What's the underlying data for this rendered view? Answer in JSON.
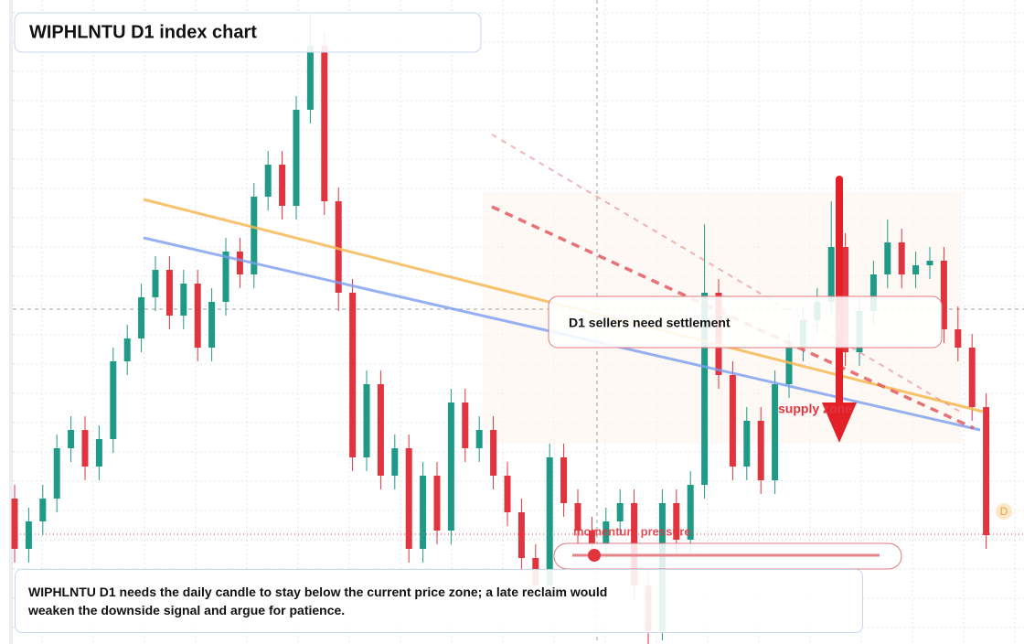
{
  "chart_data": {
    "type": "candlestick",
    "title": "WIPHLNTU D1 index chart",
    "ylim": [
      79.6,
      150
    ],
    "open": [
      95.5,
      90.0,
      93.0,
      95.5,
      101.0,
      103.0,
      99.0,
      102.0,
      110.5,
      113.0,
      117.5,
      120.5,
      115.5,
      119.0,
      112.0,
      117.0,
      122.5,
      120.0,
      128.5,
      132.0,
      127.5,
      138.0,
      145.0,
      128.0,
      118.0,
      100.0,
      108.0,
      98.0,
      101.0,
      90.0,
      98.0,
      92.0,
      106.0,
      101.0,
      103.0,
      98.0,
      94.0,
      89.0,
      86.0,
      100.0,
      95.0,
      92.0,
      90.5,
      93.0,
      95.0,
      86.0,
      81.0,
      95.0,
      91.0,
      97.0,
      118.0,
      109.0,
      99.0,
      104.0,
      97.5,
      108.0,
      112.0,
      115.0,
      117.0,
      123.0,
      111.5,
      116.0,
      120.0,
      123.5,
      120.0,
      121.0,
      121.5,
      114.0,
      112.0,
      105.5
    ],
    "high": [
      97.0,
      94.5,
      97.0,
      102.5,
      104.5,
      104.5,
      103.5,
      112.0,
      114.5,
      119.0,
      122.0,
      122.0,
      120.5,
      120.5,
      118.5,
      124.0,
      124.0,
      130.0,
      133.5,
      133.5,
      139.5,
      148.5,
      146.5,
      129.5,
      119.5,
      109.5,
      109.5,
      102.5,
      102.5,
      99.5,
      99.5,
      107.5,
      107.5,
      104.5,
      104.5,
      99.5,
      95.5,
      90.5,
      101.5,
      101.5,
      96.5,
      93.5,
      94.5,
      96.5,
      96.5,
      87.5,
      96.5,
      96.5,
      98.5,
      125.5,
      119.5,
      110.5,
      105.5,
      105.5,
      109.5,
      113.5,
      116.5,
      118.5,
      128.0,
      124.5,
      117.5,
      121.5,
      126.0,
      125.0,
      122.5,
      123.0,
      123.0,
      116.5,
      113.5,
      107.0
    ],
    "low": [
      88.5,
      88.5,
      91.5,
      94.0,
      99.5,
      97.5,
      97.5,
      100.5,
      109.0,
      111.5,
      116.0,
      114.0,
      114.0,
      110.5,
      110.5,
      115.5,
      118.5,
      118.5,
      127.0,
      126.0,
      126.0,
      136.5,
      126.5,
      116.0,
      98.5,
      98.5,
      96.5,
      96.5,
      88.5,
      88.5,
      90.5,
      90.5,
      99.5,
      99.5,
      96.5,
      92.5,
      87.5,
      84.5,
      84.5,
      93.5,
      90.5,
      89.0,
      89.0,
      91.5,
      84.5,
      79.6,
      80.0,
      89.5,
      89.5,
      95.5,
      107.5,
      97.5,
      97.5,
      96.0,
      96.0,
      106.5,
      110.5,
      113.5,
      115.5,
      110.0,
      110.0,
      114.5,
      118.5,
      118.5,
      118.5,
      119.5,
      112.5,
      110.5,
      104.0,
      90.0
    ],
    "close": [
      90.0,
      93.0,
      95.5,
      101.0,
      103.0,
      99.0,
      102.0,
      110.5,
      113.0,
      117.5,
      120.5,
      115.5,
      119.0,
      112.0,
      117.0,
      122.5,
      120.0,
      128.5,
      132.0,
      127.5,
      138.0,
      145.0,
      128.0,
      118.0,
      100.0,
      108.0,
      98.0,
      101.0,
      90.0,
      98.0,
      92.0,
      106.0,
      101.0,
      103.0,
      98.0,
      94.0,
      89.0,
      86.0,
      100.0,
      95.0,
      92.0,
      90.5,
      93.0,
      95.0,
      86.0,
      81.0,
      95.0,
      91.0,
      97.0,
      118.0,
      109.0,
      99.0,
      104.0,
      97.5,
      108.0,
      112.0,
      115.0,
      117.0,
      123.0,
      111.5,
      116.0,
      120.0,
      123.5,
      120.0,
      121.0,
      121.5,
      114.0,
      112.0,
      105.5,
      91.5
    ],
    "up_color": "#1f9a87",
    "down_color": "#e2343f",
    "grid": true,
    "annotations": {
      "signal": "D1 sellers need settlement",
      "zone": "supply zone",
      "pressure": "momentum pressure",
      "badge": "D",
      "note": "WIPHLNTU D1 needs the daily candle to stay below the current price zone; a late reclaim would weaken the downside signal and argue for patience."
    }
  }
}
